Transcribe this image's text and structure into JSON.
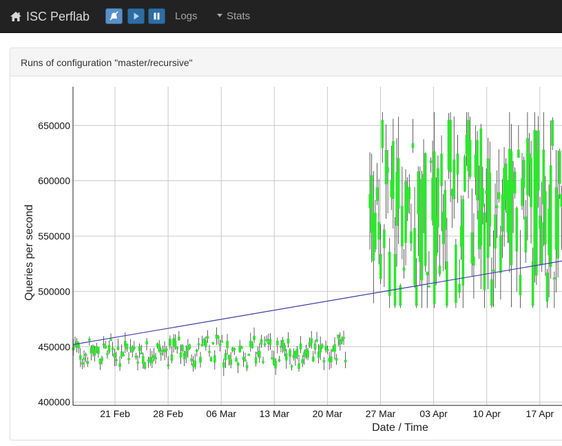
{
  "navbar": {
    "brand": "ISC Perflab",
    "brand_icon": "home-icon",
    "controls": [
      {
        "name": "paused-indicator-button",
        "icon": "bell-slash-icon"
      },
      {
        "name": "play-button",
        "icon": "play-icon"
      },
      {
        "name": "pause-button",
        "icon": "pause-icon"
      }
    ],
    "logs_label": "Logs",
    "stats_label": "Stats"
  },
  "panel": {
    "title": "Runs of configuration \"master/recursive\""
  },
  "chart_data": {
    "type": "line",
    "xlabel": "Date / Time",
    "ylabel": "Queries per second",
    "y_ticks": [
      400000,
      450000,
      500000,
      550000,
      600000,
      650000
    ],
    "x_ticks": [
      "21 Feb",
      "28 Feb",
      "06 Mar",
      "13 Mar",
      "20 Mar",
      "27 Mar",
      "03 Apr",
      "10 Apr",
      "17 Apr"
    ],
    "ylim": [
      397000,
      685000
    ],
    "grid": true,
    "series": [
      {
        "kind": "candlestick",
        "color": "#2ee62e",
        "wick_color": "#333333",
        "segments": [
          {
            "x_start_day": -5.5,
            "x_end_day": 30.5,
            "low": 418000,
            "high": 475000,
            "body_low": 430000,
            "body_high": 461000
          },
          {
            "x_start_day": 33.6,
            "x_end_day": 64.5,
            "low": 485000,
            "high": 662000,
            "body_low": 487000,
            "body_high": 655000
          }
        ]
      },
      {
        "kind": "trend",
        "color": "#3b3ba8",
        "x_day": [
          -5.5,
          64.5
        ],
        "y": [
          452000,
          534000
        ]
      }
    ],
    "x_axis_note": "x_day is days since 21 Feb"
  }
}
